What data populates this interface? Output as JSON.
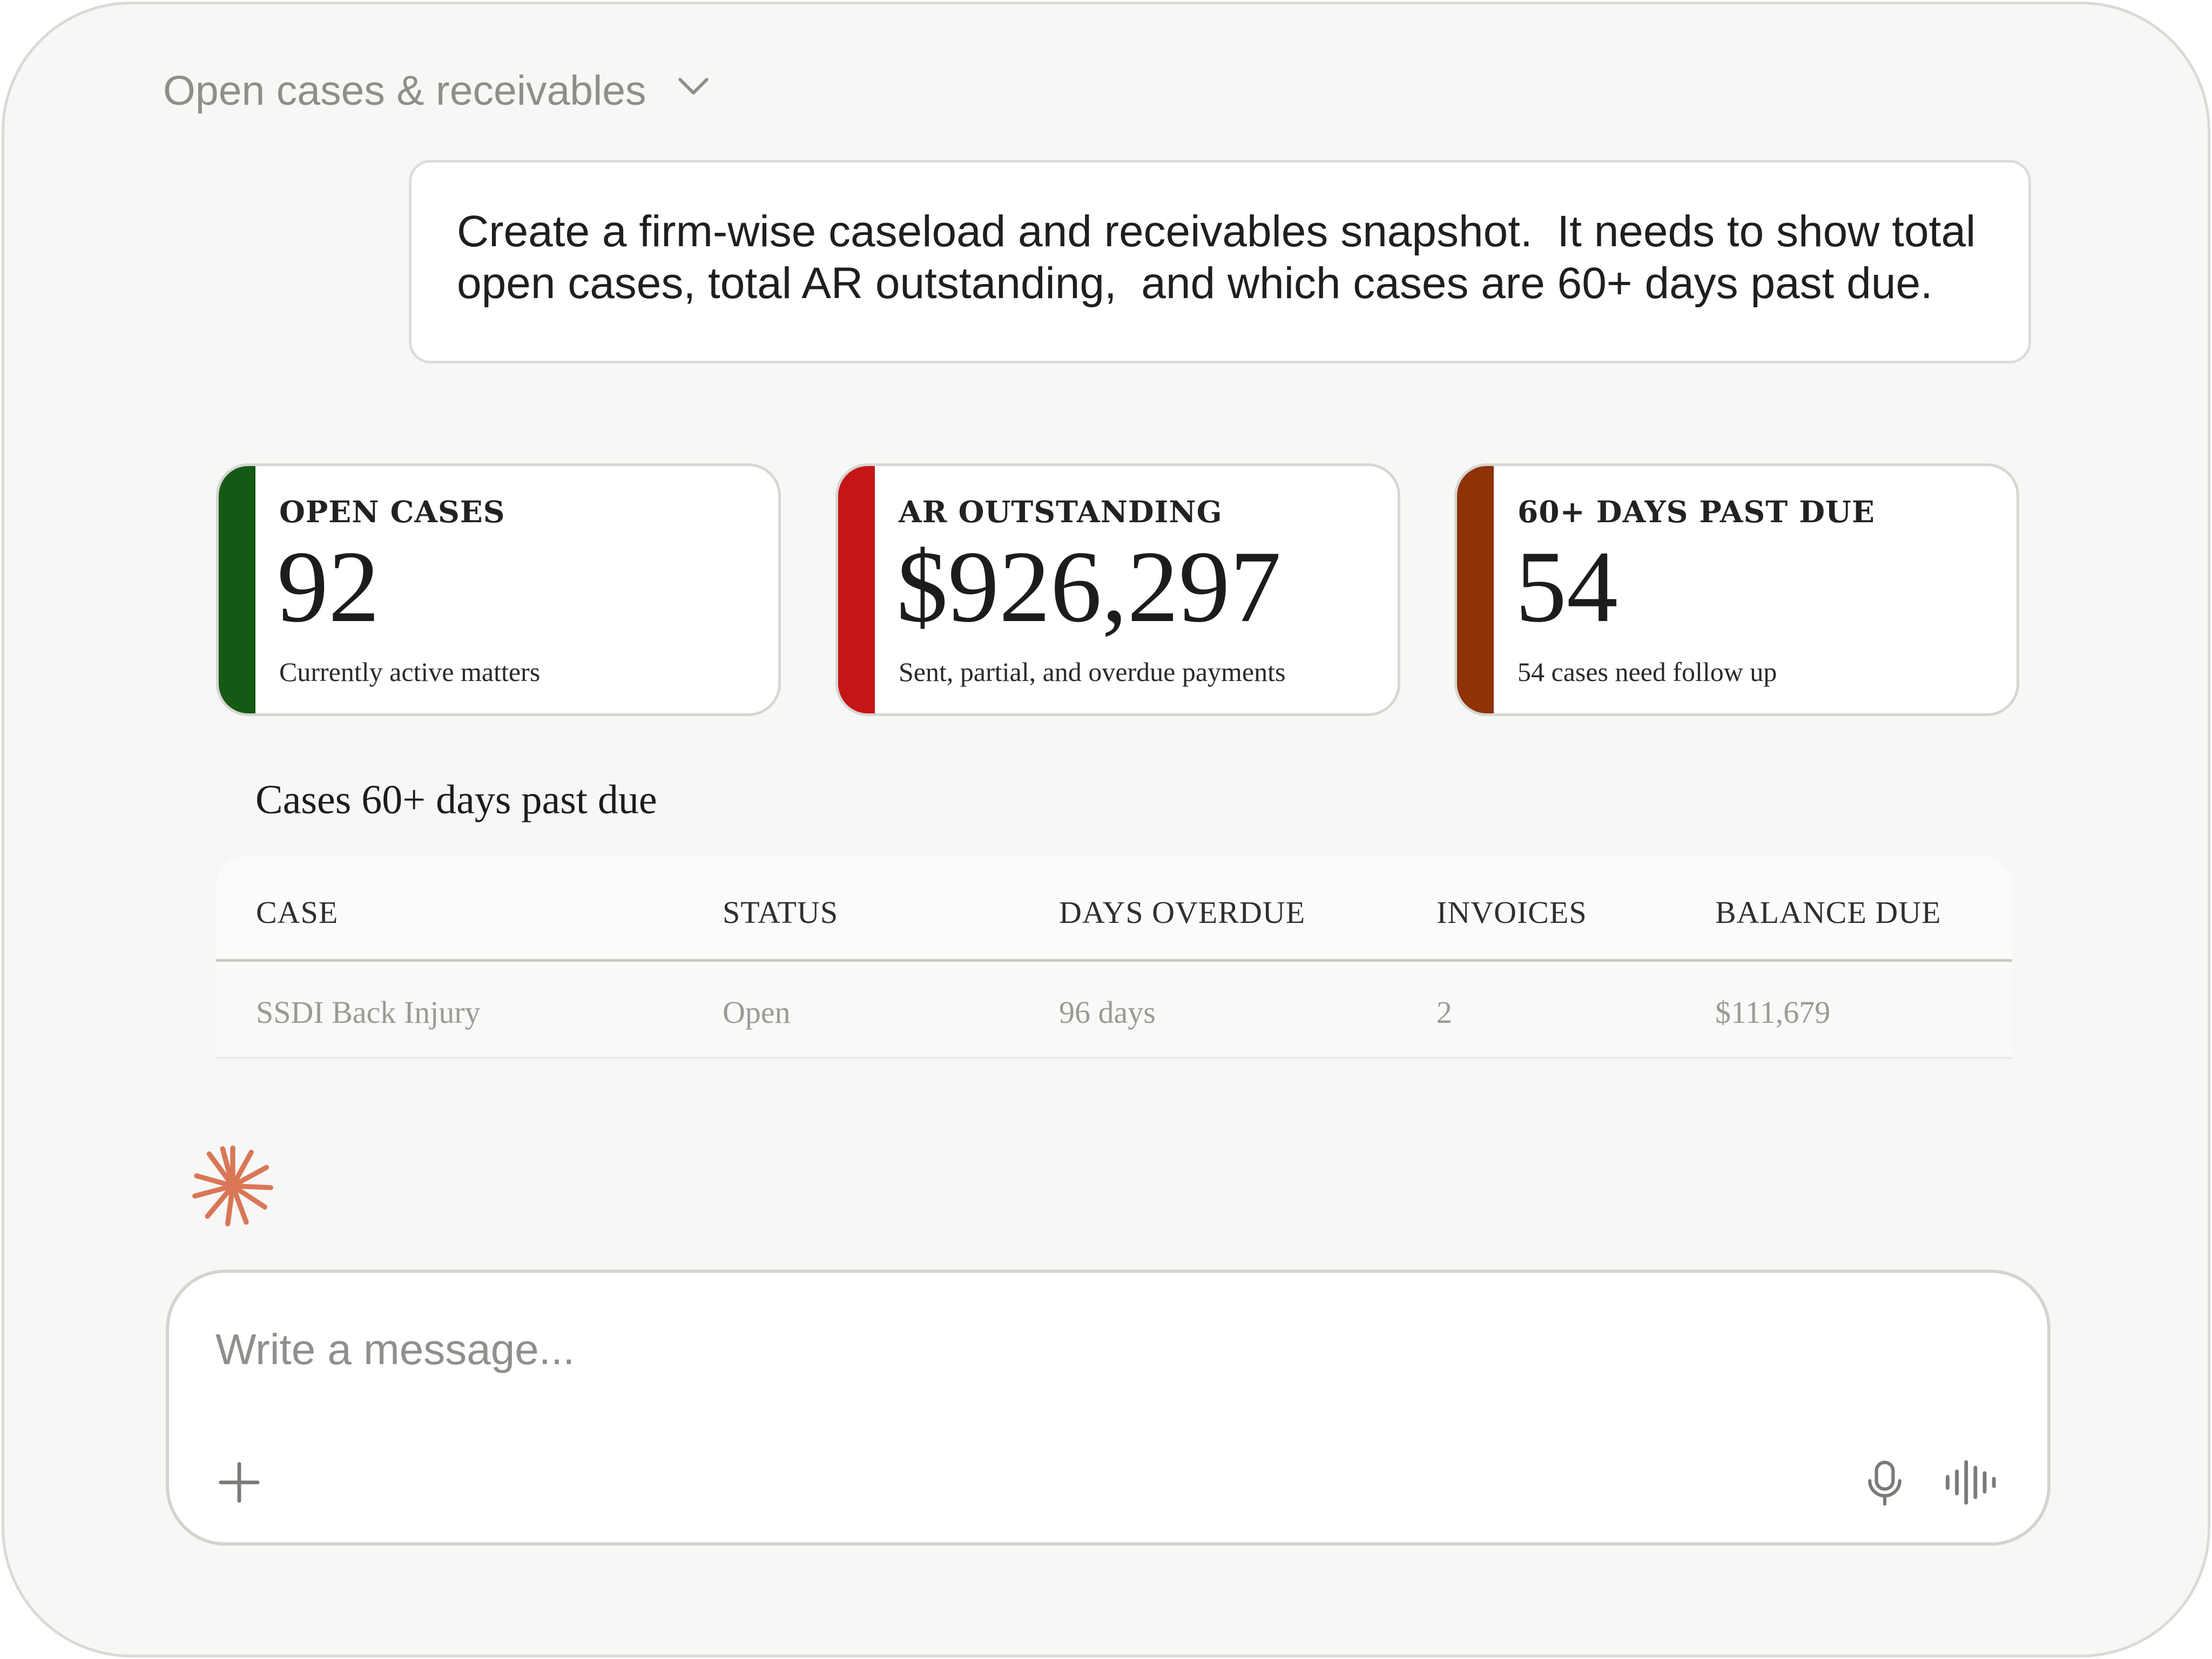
{
  "conversation": {
    "title": "Open cases & receivables"
  },
  "prompt": {
    "text": "Create a firm-wise caseload and receivables snapshot.  It needs to show total\nopen cases, total AR outstanding,  and which cases are 60+ days past due."
  },
  "cards": [
    {
      "label": "OPEN CASES",
      "value": "92",
      "subtitle": "Currently active matters",
      "accent_color": "#155a14"
    },
    {
      "label": "AR OUTSTANDING",
      "value": "$926,297",
      "subtitle": "Sent, partial, and overdue payments",
      "accent_color": "#c51616"
    },
    {
      "label": "60+ DAYS PAST DUE",
      "value": "54",
      "subtitle": "54 cases need follow up",
      "accent_color": "#8f3206"
    }
  ],
  "table": {
    "title": "Cases 60+ days past due",
    "columns": [
      "CASE",
      "STATUS",
      "DAYS OVERDUE",
      "INVOICES",
      "BALANCE DUE"
    ],
    "rows": [
      {
        "case": "SSDI Back Injury",
        "status": "Open",
        "days_overdue": "96 days",
        "invoices": "2",
        "balance_due": "$111,679"
      }
    ]
  },
  "composer": {
    "placeholder": "Write a message..."
  },
  "icons": {
    "title_chevron": "chevron-down-icon",
    "assistant": "spark-icon",
    "attach": "plus-icon",
    "dictation": "microphone-icon",
    "voice_mode": "waveform-icon"
  },
  "colors": {
    "background": "#f7f7f5",
    "spark": "#d97757",
    "text_muted": "#8e8e8b"
  }
}
